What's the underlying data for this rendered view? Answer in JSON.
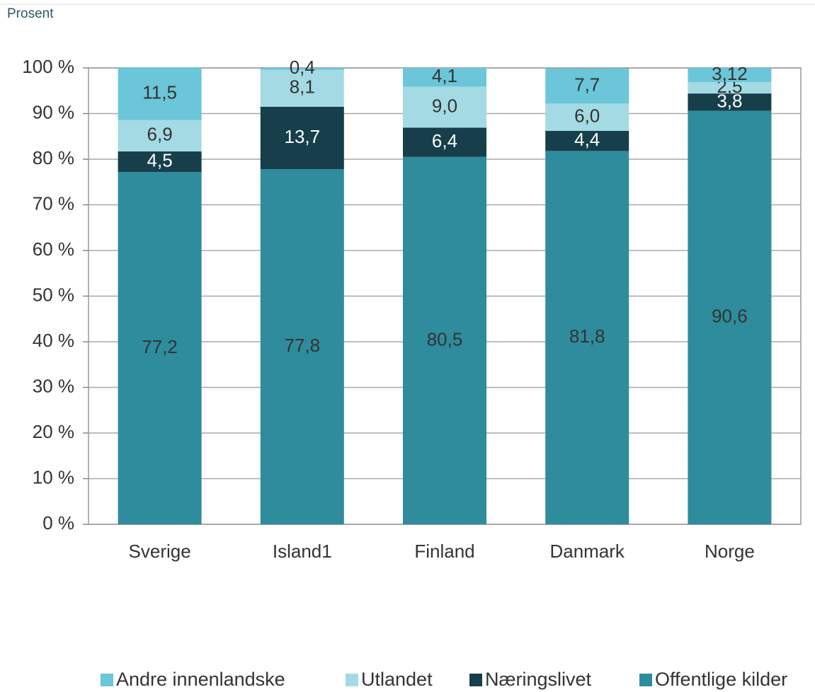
{
  "chart_data": {
    "type": "stacked_bar",
    "y_label": "Prosent",
    "categories": [
      "Sverige",
      "Island1",
      "Finland",
      "Danmark",
      "Norge"
    ],
    "series": [
      {
        "name": "Offentlige kilder",
        "color": "#2e8c9c",
        "values": [
          77.2,
          77.8,
          80.5,
          81.8,
          90.6
        ],
        "value_labels": [
          "77,2",
          "77,8",
          "80,5",
          "81,8",
          "90,6"
        ]
      },
      {
        "name": "Næringslivet",
        "color": "#163f4b",
        "values": [
          4.5,
          13.7,
          6.4,
          4.4,
          3.8
        ],
        "value_labels": [
          "4,5",
          "13,7",
          "6,4",
          "4,4",
          "3,8"
        ]
      },
      {
        "name": "Utlandet",
        "color": "#a4dae4",
        "values": [
          6.9,
          8.1,
          9.0,
          6.0,
          2.5
        ],
        "value_labels": [
          "6,9",
          "8,1",
          "9,0",
          "6,0",
          "2,5"
        ]
      },
      {
        "name": "Andre innenlandske",
        "color": "#6ac6d8",
        "values": [
          11.5,
          0.4,
          4.1,
          7.7,
          3.12
        ],
        "value_labels": [
          "11,5",
          "0,4",
          "4,1",
          "7,7",
          "3,12"
        ]
      }
    ],
    "ylim": [
      0,
      100
    ],
    "yticks": [
      {
        "value": 0,
        "label": "0 %"
      },
      {
        "value": 10,
        "label": "10 %"
      },
      {
        "value": 20,
        "label": "20 %"
      },
      {
        "value": 30,
        "label": "30 %"
      },
      {
        "value": 40,
        "label": "40 %"
      },
      {
        "value": 50,
        "label": "50 %"
      },
      {
        "value": 60,
        "label": "60 %"
      },
      {
        "value": 70,
        "label": "70 %"
      },
      {
        "value": 80,
        "label": "80 %"
      },
      {
        "value": 90,
        "label": "90 %"
      },
      {
        "value": 100,
        "label": "100 %"
      }
    ],
    "grid": true
  }
}
